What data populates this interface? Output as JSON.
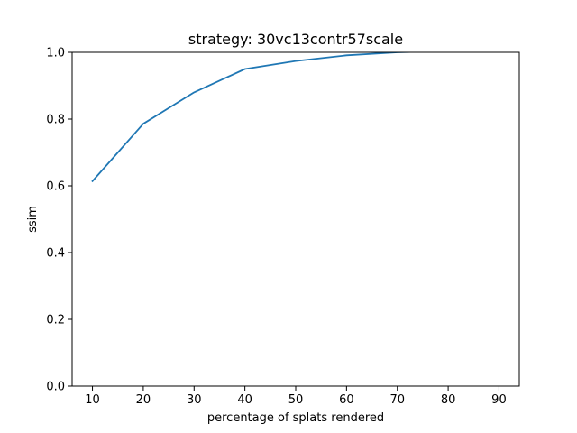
{
  "chart_data": {
    "type": "line",
    "title": "strategy: 30vc13contr57scale",
    "xlabel": "percentage of splats rendered",
    "ylabel": "ssim",
    "xlim": [
      6,
      94
    ],
    "ylim": [
      0.0,
      1.0
    ],
    "xticks": [
      10,
      20,
      30,
      40,
      50,
      60,
      70,
      80,
      90
    ],
    "yticks": [
      0.0,
      0.2,
      0.4,
      0.6,
      0.8,
      1.0
    ],
    "xtick_labels": [
      "10",
      "20",
      "30",
      "40",
      "50",
      "60",
      "70",
      "80",
      "90"
    ],
    "ytick_labels": [
      "0.0",
      "0.2",
      "0.4",
      "0.6",
      "0.8",
      "1.0"
    ],
    "grid": false,
    "series": [
      {
        "color": "#1f77b4",
        "x": [
          10,
          20,
          30,
          40,
          50,
          60,
          70,
          80,
          90
        ],
        "y": [
          0.614,
          0.786,
          0.88,
          0.95,
          0.974,
          0.991,
          1.0,
          1.004,
          1.006
        ]
      }
    ]
  }
}
